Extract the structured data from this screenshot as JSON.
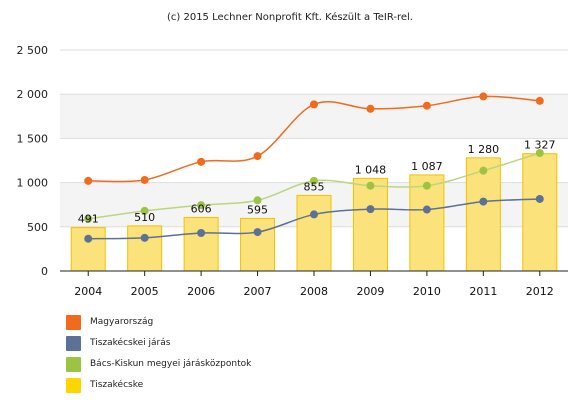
{
  "credit": "(c) 2015 Lechner Nonprofit Kft. Készült a TeIR-rel.",
  "chart_data": {
    "type": "bar",
    "categories": [
      "2004",
      "2005",
      "2006",
      "2007",
      "2008",
      "2009",
      "2010",
      "2011",
      "2012"
    ],
    "ylim": [
      0,
      2500
    ],
    "yticks": [
      0,
      500,
      1000,
      1500,
      2000,
      2500
    ],
    "ytick_labels": [
      "0",
      "500",
      "1 000",
      "1 500",
      "2 000",
      "2 500"
    ],
    "grid": "horizontal bands",
    "legend_position": "bottom-left",
    "bar_series": {
      "name": "Tiszakécske",
      "color": "#FFD500",
      "values": [
        491,
        510,
        606,
        595,
        855,
        1048,
        1087,
        1280,
        1327
      ],
      "value_labels": [
        "491",
        "510",
        "606",
        "595",
        "855",
        "1 048",
        "1 087",
        "1 280",
        "1 327"
      ]
    },
    "series": [
      {
        "name": "Magyarország",
        "color": "#F26B1D",
        "values": [
          1020,
          1030,
          1235,
          1300,
          1885,
          1835,
          1870,
          1975,
          1925
        ]
      },
      {
        "name": "Tiszakécskei járás",
        "color": "#5C7196",
        "values": [
          365,
          375,
          430,
          440,
          640,
          700,
          695,
          785,
          815
        ]
      },
      {
        "name": "Bács-Kiskun megyei járásközpontok",
        "color": "#9BC443",
        "values": [
          590,
          680,
          745,
          800,
          1020,
          965,
          965,
          1135,
          1335
        ]
      }
    ]
  }
}
